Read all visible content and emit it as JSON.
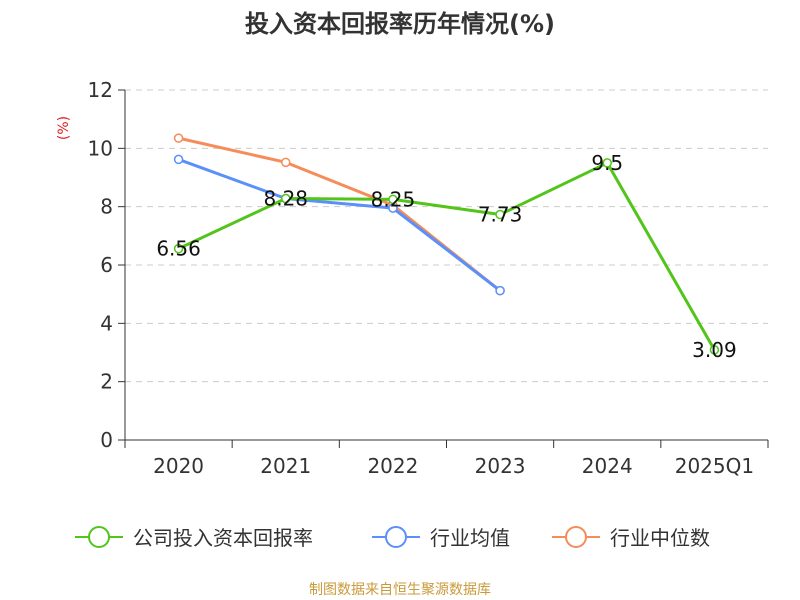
{
  "chart_data": {
    "type": "line",
    "title": "投入资本回报率历年情况(%)",
    "ylabel": "(%)",
    "xlabel": "",
    "ylim": [
      0,
      12
    ],
    "yticks": [
      0,
      2,
      4,
      6,
      8,
      10,
      12
    ],
    "grid": true,
    "categories": [
      "2020",
      "2021",
      "2022",
      "2023",
      "2024",
      "2025Q1"
    ],
    "series": [
      {
        "name": "公司投入资本回报率",
        "color": "#52c41a",
        "values": [
          6.56,
          8.28,
          8.25,
          7.73,
          9.5,
          3.09
        ],
        "labels": [
          "6.56",
          "8.28",
          "8.25",
          "7.73",
          "9.5",
          "3.09"
        ]
      },
      {
        "name": "行业均值",
        "color": "#5b8ff9",
        "values": [
          9.62,
          8.28,
          7.95,
          5.12,
          null,
          null
        ]
      },
      {
        "name": "行业中位数",
        "color": "#f58c5a",
        "values": [
          10.35,
          9.52,
          8.05,
          5.12,
          null,
          null
        ]
      }
    ],
    "legend_position": "bottom"
  },
  "footer": {
    "source": "制图数据来自恒生聚源数据库",
    "color": "#c99a3a"
  }
}
